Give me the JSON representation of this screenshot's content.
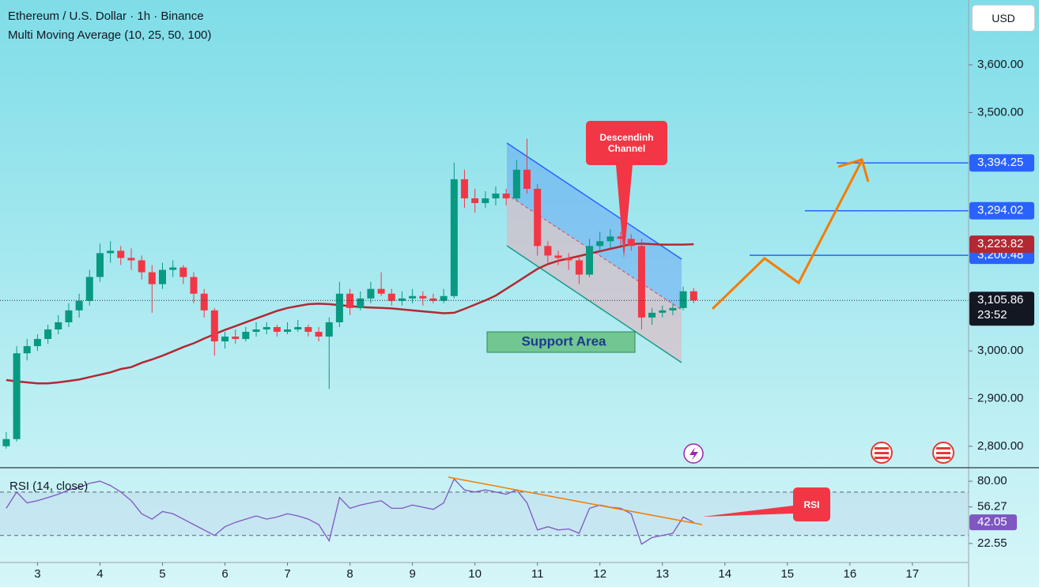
{
  "header": {
    "title": "Ethereum / U.S. Dollar · 1h · Binance",
    "indicator": "Multi Moving Average (10, 25, 50, 100)",
    "currency": "USD"
  },
  "chart_data": [
    {
      "type": "candlestick",
      "x": [
        2.5,
        2.667,
        2.833,
        3,
        3.167,
        3.333,
        3.5,
        3.667,
        3.833,
        4,
        4.167,
        4.333,
        4.5,
        4.667,
        4.833,
        5,
        5.167,
        5.333,
        5.5,
        5.667,
        5.833,
        6,
        6.167,
        6.333,
        6.5,
        6.667,
        6.833,
        7,
        7.167,
        7.333,
        7.5,
        7.667,
        7.833,
        8,
        8.167,
        8.333,
        8.5,
        8.667,
        8.833,
        9,
        9.167,
        9.333,
        9.5,
        9.667,
        9.833,
        10,
        10.167,
        10.333,
        10.5,
        10.667,
        10.833,
        11,
        11.167,
        11.333,
        11.5,
        11.667,
        11.833,
        12,
        12.167,
        12.333,
        12.5,
        12.667,
        12.833,
        13,
        13.167,
        13.333,
        13.5
      ],
      "ohlc": [
        [
          2800,
          2830,
          2795,
          2815
        ],
        [
          2815,
          3010,
          2810,
          2995
        ],
        [
          2995,
          3025,
          2980,
          3010
        ],
        [
          3010,
          3035,
          3000,
          3025
        ],
        [
          3025,
          3055,
          3015,
          3045
        ],
        [
          3045,
          3075,
          3035,
          3060
        ],
        [
          3060,
          3100,
          3050,
          3085
        ],
        [
          3085,
          3120,
          3070,
          3105
        ],
        [
          3105,
          3170,
          3095,
          3155
        ],
        [
          3155,
          3225,
          3145,
          3205
        ],
        [
          3205,
          3230,
          3185,
          3210
        ],
        [
          3210,
          3220,
          3180,
          3195
        ],
        [
          3195,
          3215,
          3170,
          3190
        ],
        [
          3190,
          3200,
          3150,
          3165
        ],
        [
          3165,
          3180,
          3080,
          3140
        ],
        [
          3140,
          3185,
          3130,
          3170
        ],
        [
          3170,
          3190,
          3155,
          3175
        ],
        [
          3175,
          3180,
          3140,
          3155
        ],
        [
          3155,
          3165,
          3100,
          3120
        ],
        [
          3120,
          3130,
          3070,
          3085
        ],
        [
          3085,
          3090,
          2990,
          3020
        ],
        [
          3020,
          3040,
          3005,
          3030
        ],
        [
          3030,
          3045,
          3015,
          3025
        ],
        [
          3025,
          3050,
          3020,
          3040
        ],
        [
          3040,
          3060,
          3030,
          3045
        ],
        [
          3045,
          3060,
          3035,
          3050
        ],
        [
          3050,
          3055,
          3030,
          3040
        ],
        [
          3040,
          3060,
          3035,
          3045
        ],
        [
          3045,
          3065,
          3040,
          3050
        ],
        [
          3050,
          3055,
          3030,
          3040
        ],
        [
          3040,
          3050,
          3020,
          3030
        ],
        [
          3030,
          3070,
          2920,
          3060
        ],
        [
          3060,
          3145,
          3050,
          3120
        ],
        [
          3120,
          3130,
          3075,
          3090
        ],
        [
          3090,
          3125,
          3085,
          3110
        ],
        [
          3110,
          3145,
          3100,
          3130
        ],
        [
          3130,
          3165,
          3115,
          3120
        ],
        [
          3120,
          3130,
          3095,
          3105
        ],
        [
          3105,
          3125,
          3095,
          3110
        ],
        [
          3110,
          3130,
          3100,
          3115
        ],
        [
          3115,
          3125,
          3095,
          3110
        ],
        [
          3110,
          3120,
          3100,
          3105
        ],
        [
          3105,
          3130,
          3100,
          3115
        ],
        [
          3115,
          3395,
          3110,
          3360
        ],
        [
          3360,
          3380,
          3300,
          3320
        ],
        [
          3320,
          3340,
          3290,
          3310
        ],
        [
          3310,
          3335,
          3300,
          3320
        ],
        [
          3320,
          3345,
          3305,
          3330
        ],
        [
          3330,
          3340,
          3305,
          3320
        ],
        [
          3320,
          3400,
          3315,
          3380
        ],
        [
          3380,
          3445,
          3330,
          3340
        ],
        [
          3340,
          3350,
          3200,
          3220
        ],
        [
          3220,
          3230,
          3185,
          3200
        ],
        [
          3200,
          3210,
          3180,
          3195
        ],
        [
          3195,
          3205,
          3170,
          3190
        ],
        [
          3190,
          3200,
          3140,
          3160
        ],
        [
          3160,
          3235,
          3155,
          3220
        ],
        [
          3220,
          3250,
          3210,
          3230
        ],
        [
          3230,
          3255,
          3215,
          3240
        ],
        [
          3240,
          3250,
          3220,
          3235
        ],
        [
          3235,
          3245,
          3210,
          3220
        ],
        [
          3220,
          3235,
          3045,
          3070
        ],
        [
          3070,
          3090,
          3055,
          3080
        ],
        [
          3080,
          3095,
          3070,
          3085
        ],
        [
          3085,
          3100,
          3075,
          3090
        ],
        [
          3090,
          3135,
          3085,
          3125
        ],
        [
          3125,
          3132,
          3100,
          3105.86
        ]
      ],
      "up_color": "#089981",
      "down_color": "#f23645",
      "last_label": "3,105.86",
      "countdown": "23:52",
      "series": [
        {
          "color": "#b22833",
          "values": [
            2939,
            2936,
            2934,
            2932,
            2932,
            2934,
            2937,
            2940,
            2945,
            2950,
            2955,
            2962,
            2966,
            2975,
            2982,
            2990,
            2999,
            3008,
            3016,
            3026,
            3035,
            3044,
            3052,
            3060,
            3068,
            3076,
            3084,
            3090,
            3094,
            3098,
            3099,
            3098,
            3096,
            3094,
            3092,
            3091,
            3090,
            3089,
            3087,
            3085,
            3083,
            3081,
            3079,
            3080,
            3088,
            3097,
            3106,
            3116,
            3130,
            3144,
            3158,
            3172,
            3182,
            3189,
            3194,
            3199,
            3204,
            3209,
            3214,
            3219,
            3224,
            3225,
            3224,
            3223,
            3223,
            3223,
            3223.82
          ],
          "last_label": "3,223.82"
        }
      ],
      "xlim": [
        2.4,
        17.9
      ],
      "xticks": [
        3,
        4,
        5,
        6,
        7,
        8,
        9,
        10,
        11,
        12,
        13,
        14,
        15,
        16,
        17
      ],
      "ylim": [
        2755,
        3736
      ],
      "yticks": [
        {
          "value": 2800,
          "label": "2,800.00"
        },
        {
          "value": 2900,
          "label": "2,900.00"
        },
        {
          "value": 3000,
          "label": "3,000.00"
        },
        {
          "value": 3500,
          "label": "3,500.00"
        },
        {
          "value": 3600,
          "label": "3,600.00"
        }
      ],
      "price_levels": [
        {
          "value": 3394.25,
          "label": "3,394.25",
          "color": "#2962ff"
        },
        {
          "value": 3294.02,
          "label": "3,294.02",
          "color": "#2962ff"
        },
        {
          "value": 3200.48,
          "label": "3,200.48",
          "color": "#2962ff"
        }
      ],
      "annotations": {
        "channel": "Descendinh Channel",
        "support": "Support Area"
      }
    },
    {
      "type": "line",
      "title": "RSI (14, close)",
      "series": [
        {
          "color": "#7e57c2",
          "values": [
            55,
            70,
            60,
            62,
            65,
            68,
            72,
            74,
            78,
            80,
            76,
            70,
            62,
            50,
            45,
            52,
            50,
            45,
            40,
            35,
            30,
            38,
            42,
            45,
            48,
            45,
            47,
            50,
            48,
            45,
            40,
            25,
            65,
            55,
            58,
            60,
            62,
            55,
            55,
            58,
            56,
            54,
            60,
            82,
            72,
            70,
            72,
            70,
            68,
            72,
            60,
            35,
            38,
            35,
            36,
            32,
            55,
            58,
            56,
            55,
            50,
            22,
            28,
            30,
            32,
            47,
            42.05
          ],
          "last_label": "42.05"
        }
      ],
      "ylim": [
        5,
        91
      ],
      "yticks": [
        {
          "value": 80,
          "label": "80.00"
        },
        56.27,
        22.55
      ],
      "bands": [
        30,
        70
      ],
      "annotation": "RSI"
    }
  ]
}
